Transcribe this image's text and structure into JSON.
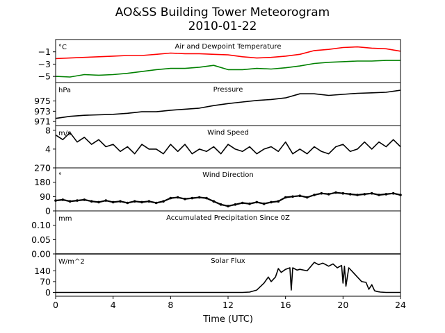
{
  "figure": {
    "title_line1": "AO&SS Building Tower Meteorogram",
    "title_line2": "2010-01-22",
    "xlabel": "Time (UTC)",
    "x_ticks": [
      0,
      4,
      8,
      12,
      16,
      20,
      24
    ],
    "xlim": [
      0,
      24
    ]
  },
  "chart_data": [
    {
      "type": "line",
      "title": "Air and Dewpoint Temperature",
      "unit_label": "°C",
      "ylim": [
        -6,
        1
      ],
      "y_ticks": [
        -1,
        -3,
        -5
      ],
      "y_tick_labels": [
        "−1",
        "−3",
        "−5"
      ],
      "series": [
        {
          "color": "#ff0000",
          "x": [
            0,
            1,
            2,
            3,
            4,
            5,
            6,
            7,
            8,
            9,
            10,
            11,
            12,
            13,
            14,
            15,
            16,
            17,
            18,
            19,
            20,
            21,
            22,
            23,
            24
          ],
          "y": [
            -2.1,
            -2.0,
            -1.9,
            -1.8,
            -1.7,
            -1.6,
            -1.6,
            -1.4,
            -1.2,
            -1.3,
            -1.3,
            -1.4,
            -1.5,
            -1.8,
            -2.0,
            -1.9,
            -1.7,
            -1.4,
            -0.8,
            -0.6,
            -0.3,
            -0.2,
            -0.4,
            -0.5,
            -0.9
          ]
        },
        {
          "color": "#008000",
          "x": [
            0,
            1,
            2,
            3,
            4,
            5,
            6,
            7,
            8,
            9,
            10,
            11,
            12,
            13,
            14,
            15,
            16,
            17,
            18,
            19,
            20,
            21,
            22,
            23,
            24
          ],
          "y": [
            -5.0,
            -5.1,
            -4.7,
            -4.8,
            -4.7,
            -4.5,
            -4.2,
            -3.9,
            -3.7,
            -3.7,
            -3.5,
            -3.2,
            -3.9,
            -3.9,
            -3.7,
            -3.8,
            -3.6,
            -3.3,
            -2.9,
            -2.7,
            -2.6,
            -2.5,
            -2.5,
            -2.4,
            -2.4
          ]
        }
      ]
    },
    {
      "type": "line",
      "title": "Pressure",
      "unit_label": "hPa",
      "ylim": [
        970.2,
        978.6
      ],
      "y_ticks": [
        975,
        973,
        971
      ],
      "series": [
        {
          "color": "#000000",
          "x": [
            0,
            1,
            2,
            3,
            4,
            5,
            6,
            7,
            8,
            9,
            10,
            11,
            12,
            13,
            14,
            15,
            16,
            17,
            18,
            19,
            20,
            21,
            22,
            23,
            24
          ],
          "y": [
            971.6,
            972.0,
            972.2,
            972.3,
            972.4,
            972.6,
            972.9,
            972.9,
            973.2,
            973.4,
            973.6,
            974.1,
            974.5,
            974.8,
            975.1,
            975.3,
            975.6,
            976.4,
            976.4,
            976.1,
            976.3,
            976.5,
            976.6,
            976.7,
            977.1
          ]
        }
      ]
    },
    {
      "type": "line",
      "title": "Wind Speed",
      "unit_label": "m/s",
      "ylim": [
        0,
        9
      ],
      "y_ticks": [
        8,
        4,
        0
      ],
      "series": [
        {
          "color": "#000000",
          "x": [
            0,
            0.5,
            1,
            1.5,
            2,
            2.5,
            3,
            3.5,
            4,
            4.5,
            5,
            5.5,
            6,
            6.5,
            7,
            7.5,
            8,
            8.5,
            9,
            9.5,
            10,
            10.5,
            11,
            11.5,
            12,
            12.5,
            13,
            13.5,
            14,
            14.5,
            15,
            15.5,
            16,
            16.5,
            17,
            17.5,
            18,
            18.5,
            19,
            19.5,
            20,
            20.5,
            21,
            21.5,
            22,
            22.5,
            23,
            23.5,
            24
          ],
          "y": [
            7.0,
            6.0,
            7.5,
            5.5,
            6.5,
            5.0,
            6.0,
            4.5,
            5.0,
            3.5,
            4.5,
            3.0,
            5.0,
            4.0,
            4.0,
            3.0,
            5.0,
            3.5,
            5.0,
            3.0,
            4.0,
            3.5,
            4.5,
            3.0,
            5.0,
            4.0,
            3.5,
            4.5,
            3.0,
            4.0,
            4.5,
            3.5,
            5.5,
            3.0,
            4.0,
            3.0,
            4.5,
            3.5,
            3.0,
            4.5,
            5.0,
            3.5,
            4.0,
            5.5,
            4.0,
            5.5,
            4.5,
            6.0,
            4.5
          ]
        }
      ]
    },
    {
      "type": "scatter",
      "title": "Wind Direction",
      "unit_label": "°",
      "ylim": [
        0,
        270
      ],
      "y_ticks": [
        270,
        180,
        90,
        0
      ],
      "series": [
        {
          "color": "#000000",
          "x": [
            0,
            0.5,
            1,
            1.5,
            2,
            2.5,
            3,
            3.5,
            4,
            4.5,
            5,
            5.5,
            6,
            6.5,
            7,
            7.5,
            8,
            8.5,
            9,
            9.5,
            10,
            10.5,
            11,
            11.5,
            12,
            12.5,
            13,
            13.5,
            14,
            14.5,
            15,
            15.5,
            16,
            16.5,
            17,
            17.5,
            18,
            18.5,
            19,
            19.5,
            20,
            20.5,
            21,
            21.5,
            22,
            22.5,
            23,
            23.5,
            24
          ],
          "y": [
            65,
            70,
            60,
            65,
            70,
            60,
            55,
            65,
            55,
            60,
            50,
            60,
            55,
            60,
            50,
            60,
            80,
            85,
            75,
            80,
            85,
            80,
            60,
            40,
            30,
            40,
            50,
            45,
            55,
            45,
            55,
            60,
            85,
            90,
            95,
            85,
            100,
            110,
            105,
            115,
            110,
            105,
            100,
            105,
            110,
            100,
            105,
            110,
            100
          ]
        }
      ]
    },
    {
      "type": "line",
      "title": "Accumulated Precipitation Since 0Z",
      "unit_label": "mm",
      "ylim": [
        0,
        0.15
      ],
      "y_ticks": [
        0.1,
        0.05,
        0.0
      ],
      "y_tick_labels": [
        "0.10",
        "0.05",
        "0.00"
      ],
      "series": [
        {
          "color": "#000000",
          "x": [
            0,
            24
          ],
          "y": [
            0,
            0
          ]
        }
      ]
    },
    {
      "type": "line",
      "title": "Solar Flux",
      "unit_label": "W/m^2",
      "ylim": [
        -25,
        250
      ],
      "y_ticks": [
        140,
        70,
        0
      ],
      "series": [
        {
          "color": "#000000",
          "x": [
            0,
            4,
            8,
            12,
            13,
            13.5,
            14,
            14.5,
            14.8,
            15,
            15.3,
            15.5,
            15.7,
            16,
            16.3,
            16.4,
            16.5,
            16.8,
            17,
            17.5,
            18,
            18.3,
            18.6,
            19,
            19.3,
            19.6,
            19.9,
            20,
            20.1,
            20.2,
            20.4,
            20.7,
            21,
            21.3,
            21.6,
            21.8,
            22,
            22.2,
            22.4,
            22.6,
            23,
            24
          ],
          "y": [
            0,
            0,
            0,
            0,
            0,
            2,
            15,
            60,
            100,
            70,
            100,
            155,
            130,
            150,
            160,
            15,
            160,
            145,
            150,
            140,
            195,
            180,
            190,
            170,
            185,
            160,
            175,
            60,
            170,
            40,
            160,
            130,
            100,
            70,
            65,
            20,
            50,
            10,
            5,
            2,
            0,
            0
          ]
        }
      ]
    }
  ]
}
